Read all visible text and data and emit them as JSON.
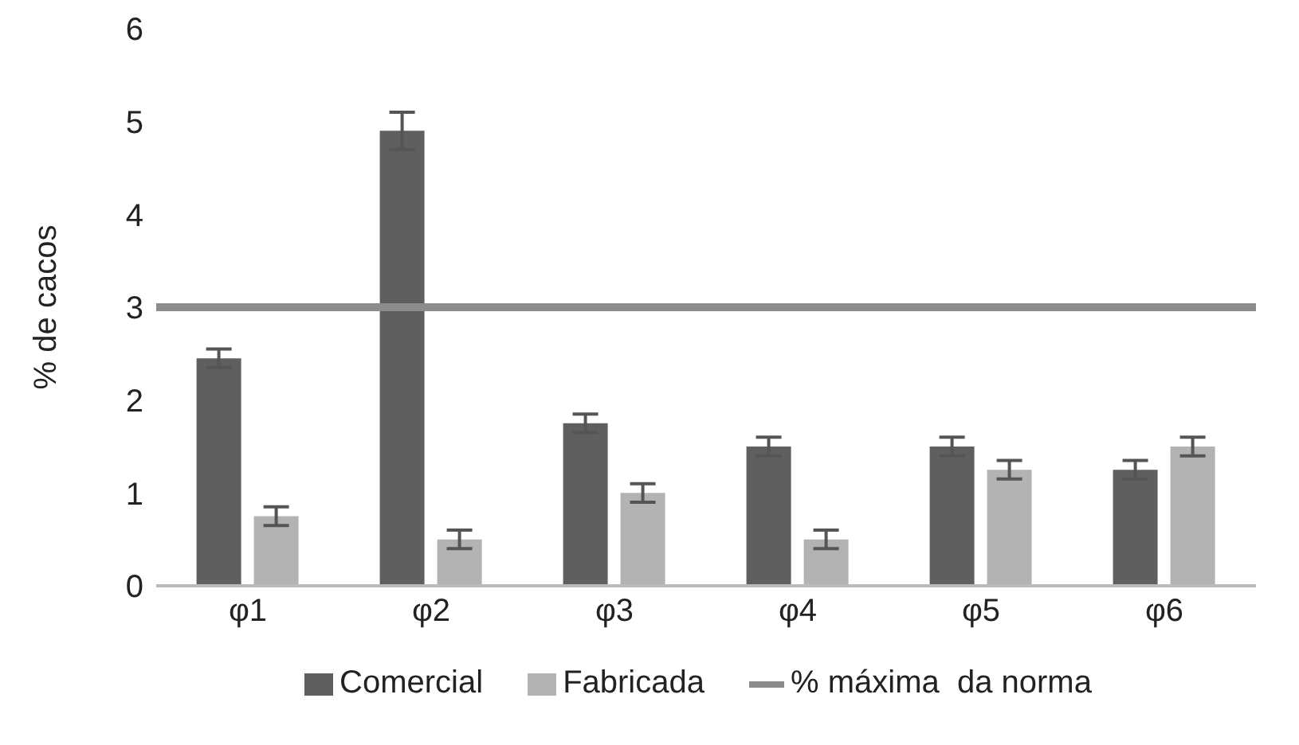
{
  "chart_data": {
    "type": "bar",
    "ylabel": "% de cacos",
    "categories": [
      "φ1",
      "φ2",
      "φ3",
      "φ4",
      "φ5",
      "φ6"
    ],
    "series": [
      {
        "name": "Comercial",
        "color": "#5f5f5f",
        "values": [
          2.45,
          4.9,
          1.75,
          1.5,
          1.5,
          1.25
        ],
        "errors": [
          0.1,
          0.2,
          0.1,
          0.1,
          0.1,
          0.1
        ]
      },
      {
        "name": "Fabricada",
        "color": "#b3b3b3",
        "values": [
          0.75,
          0.5,
          1.0,
          0.5,
          1.25,
          1.5
        ],
        "errors": [
          0.1,
          0.1,
          0.1,
          0.1,
          0.1,
          0.1
        ]
      }
    ],
    "ref_lines": [
      {
        "axis": "y",
        "value": 3,
        "label": "% máxima  da norma",
        "color": "#8c8c8c"
      }
    ],
    "ylim": [
      0,
      6
    ],
    "yticks": [
      0,
      1,
      2,
      3,
      4,
      5,
      6
    ],
    "grid": false,
    "legend": "bottom"
  }
}
